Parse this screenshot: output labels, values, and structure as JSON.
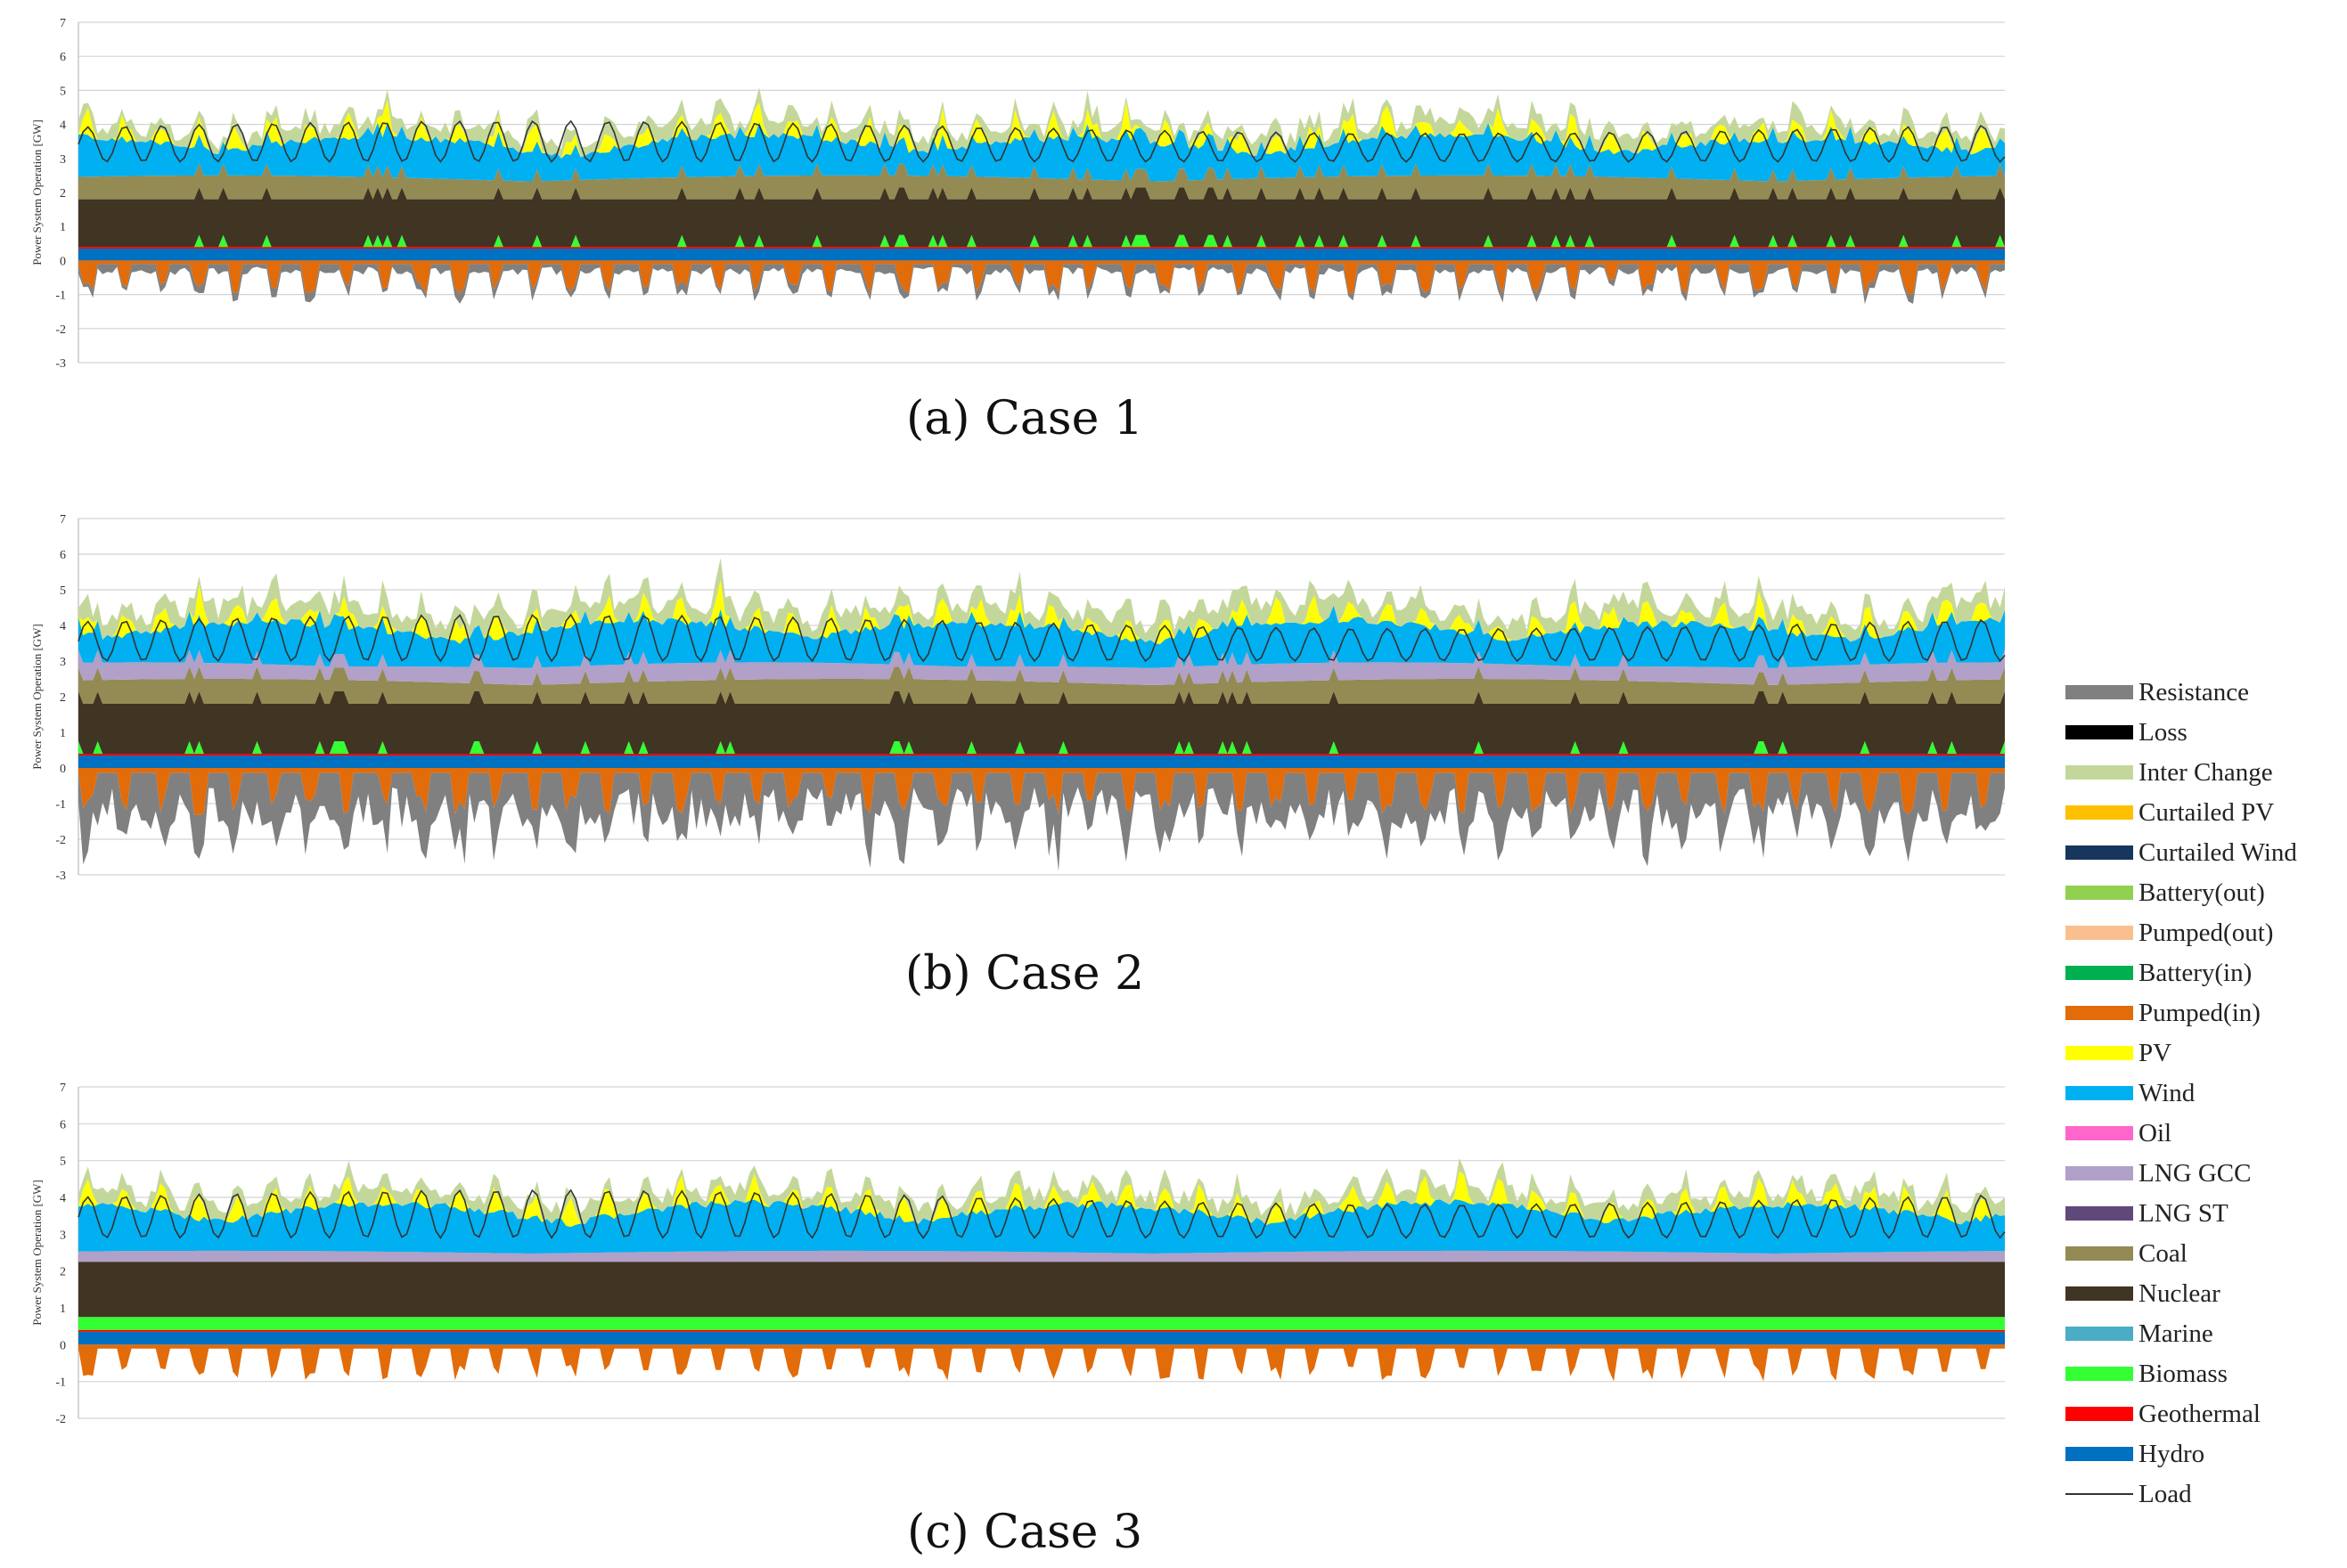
{
  "chart_data": [
    {
      "type": "area",
      "ylabel": "Power System Operation [GW]",
      "ylim": [
        -3,
        7
      ],
      "yticks": [
        "7",
        "6",
        "5",
        "4",
        "3",
        "2",
        "1",
        "0",
        "-1",
        "-2",
        "-3"
      ],
      "grid": true,
      "caption": "(a)  Case 1",
      "series": [
        {
          "name": "Hydro",
          "base": 0.35
        },
        {
          "name": "Geothermal",
          "base": 0.05
        },
        {
          "name": "Biomass",
          "base": 0.0
        },
        {
          "name": "Nuclear",
          "base": 1.4
        },
        {
          "name": "Coal",
          "base": 0.7
        },
        {
          "name": "Wind",
          "base": 0.6
        },
        {
          "name": "PV",
          "base": 0.3
        },
        {
          "name": "Inter Change",
          "base": 0.3
        },
        {
          "name": "Pumped(in)",
          "base": -0.3
        },
        {
          "name": "Resistance",
          "base": -0.2
        }
      ],
      "load_range": [
        2.9,
        4.1
      ]
    },
    {
      "type": "area",
      "ylabel": "Power System Operation [GW]",
      "ylim": [
        -3,
        7
      ],
      "yticks": [
        "7",
        "6",
        "5",
        "4",
        "3",
        "2",
        "1",
        "0",
        "-1",
        "-2",
        "-3"
      ],
      "grid": true,
      "caption": "(b)  Case 2",
      "series": [
        {
          "name": "Hydro",
          "base": 0.35
        },
        {
          "name": "Geothermal",
          "base": 0.05
        },
        {
          "name": "Biomass",
          "base": 0.0
        },
        {
          "name": "Nuclear",
          "base": 1.4
        },
        {
          "name": "Coal",
          "base": 0.7
        },
        {
          "name": "LNG GCC",
          "base": 0.5
        },
        {
          "name": "Wind",
          "base": 0.6
        },
        {
          "name": "PV",
          "base": 0.3
        },
        {
          "name": "Inter Change",
          "base": 0.4
        },
        {
          "name": "Pumped(in)",
          "base": -0.4
        },
        {
          "name": "Resistance",
          "base": -1.0
        }
      ],
      "load_range": [
        3.0,
        4.3
      ]
    },
    {
      "type": "area",
      "ylabel": "Power System Operation [GW]",
      "ylim": [
        -2,
        7
      ],
      "yticks": [
        "7",
        "6",
        "5",
        "4",
        "3",
        "2",
        "1",
        "0",
        "-1",
        "-2"
      ],
      "grid": true,
      "caption": "(c)  Case 3",
      "series": [
        {
          "name": "Hydro",
          "base": 0.35
        },
        {
          "name": "Geothermal",
          "base": 0.05
        },
        {
          "name": "Biomass",
          "base": 0.35
        },
        {
          "name": "Nuclear",
          "base": 1.5
        },
        {
          "name": "LNG GCC",
          "base": 0.3
        },
        {
          "name": "Wind",
          "base": 0.7
        },
        {
          "name": "PV",
          "base": 0.3
        },
        {
          "name": "Inter Change",
          "base": 0.3
        },
        {
          "name": "Pumped(in)",
          "base": -0.3
        }
      ],
      "load_range": [
        2.9,
        4.2
      ]
    }
  ],
  "legend": [
    {
      "label": "Resistance",
      "color": "#808080"
    },
    {
      "label": "Loss",
      "color": "#000000"
    },
    {
      "label": "Inter Change",
      "color": "#c4d79b"
    },
    {
      "label": "Curtailed PV",
      "color": "#ffc000"
    },
    {
      "label": "Curtailed Wind",
      "color": "#17365d"
    },
    {
      "label": "Battery(out)",
      "color": "#92d050"
    },
    {
      "label": "Pumped(out)",
      "color": "#fabf8f"
    },
    {
      "label": "Battery(in)",
      "color": "#00b050"
    },
    {
      "label": "Pumped(in)",
      "color": "#e26b0a"
    },
    {
      "label": "PV",
      "color": "#ffff00"
    },
    {
      "label": "Wind",
      "color": "#00b0f0"
    },
    {
      "label": "Oil",
      "color": "#ff66cc"
    },
    {
      "label": "LNG GCC",
      "color": "#b1a0c7"
    },
    {
      "label": "LNG ST",
      "color": "#60497a"
    },
    {
      "label": "Coal",
      "color": "#948a54"
    },
    {
      "label": "Nuclear",
      "color": "#403522"
    },
    {
      "label": "Marine",
      "color": "#4bacc6"
    },
    {
      "label": "Biomass",
      "color": "#33ff33"
    },
    {
      "label": "Geothermal",
      "color": "#ff0000"
    },
    {
      "label": "Hydro",
      "color": "#0070c0"
    },
    {
      "label": "Load",
      "color": "#333333",
      "line": true
    }
  ]
}
